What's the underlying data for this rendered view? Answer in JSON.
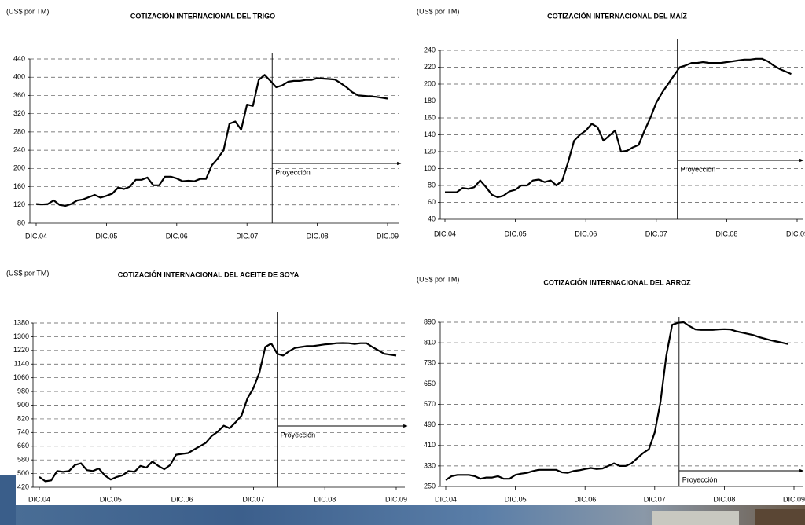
{
  "chart_data": [
    {
      "type": "line",
      "title": "COTIZACIÓN INTERNACIONAL DEL TRIGO",
      "y_label": "(US$ por TM)",
      "annotation": "Proyección",
      "projection_x": 40.3,
      "x": [
        0,
        1,
        2,
        3,
        4,
        5,
        6,
        7,
        8,
        9,
        10,
        11,
        12,
        13,
        14,
        15,
        16,
        17,
        18,
        19,
        20,
        21,
        22,
        23,
        24,
        25,
        26,
        27,
        28,
        29,
        30,
        31,
        32,
        33,
        34,
        35,
        36,
        37,
        38,
        39,
        40,
        41,
        42,
        43,
        44,
        45,
        46,
        47,
        48,
        49,
        50,
        51,
        52,
        53,
        54,
        55,
        56,
        57,
        58,
        59,
        60
      ],
      "series": [
        {
          "color": "#000000",
          "values": [
            122,
            121,
            122,
            130,
            120,
            118,
            122,
            130,
            132,
            137,
            142,
            136,
            140,
            145,
            158,
            155,
            160,
            175,
            175,
            180,
            163,
            163,
            182,
            182,
            178,
            172,
            173,
            172,
            177,
            177,
            207,
            222,
            240,
            298,
            303,
            285,
            340,
            337,
            394,
            405,
            392,
            378,
            382,
            390,
            392,
            392,
            394,
            394,
            398,
            397,
            396,
            395,
            387,
            378,
            367,
            360,
            359,
            358,
            357,
            355,
            353
          ]
        }
      ],
      "xlim": [
        0,
        60
      ],
      "xticks": [
        {
          "value": 0,
          "label": "DIC.04"
        },
        {
          "value": 12,
          "label": "DIC.05"
        },
        {
          "value": 24,
          "label": "DIC.06"
        },
        {
          "value": 36,
          "label": "DIC.07"
        },
        {
          "value": 48,
          "label": "DIC.08"
        },
        {
          "value": 60,
          "label": "DIC.09"
        }
      ],
      "ylim": [
        80,
        440
      ],
      "yticks": [
        80,
        120,
        160,
        200,
        240,
        280,
        320,
        360,
        400,
        440
      ],
      "grid": true
    },
    {
      "type": "line",
      "title": "COTIZACIÓN INTERNACIONAL DEL MAÍZ",
      "y_label": "(US$ por TM)",
      "annotation": "Proyección",
      "projection_x": 39.6,
      "x": [
        0,
        1,
        2,
        3,
        4,
        5,
        6,
        7,
        8,
        9,
        10,
        11,
        12,
        13,
        14,
        15,
        16,
        17,
        18,
        19,
        20,
        21,
        22,
        23,
        24,
        25,
        26,
        27,
        28,
        29,
        30,
        31,
        32,
        33,
        34,
        35,
        36,
        37,
        38,
        39,
        40,
        41,
        42,
        43,
        44,
        45,
        46,
        47,
        48,
        49,
        50,
        51,
        52,
        53,
        54,
        55,
        56,
        57,
        58,
        59
      ],
      "series": [
        {
          "color": "#000000",
          "values": [
            72,
            72,
            72,
            77,
            76,
            78,
            86,
            78,
            69,
            66,
            68,
            73,
            75,
            80,
            80,
            86,
            87,
            84,
            86,
            80,
            86,
            108,
            133,
            140,
            145,
            153,
            149,
            133,
            139,
            145,
            120,
            121,
            125,
            128,
            145,
            160,
            178,
            190,
            200,
            210,
            220,
            222,
            225,
            225,
            226,
            225,
            225,
            225,
            226,
            227,
            228,
            229,
            229,
            230,
            230,
            227,
            222,
            218,
            215,
            212
          ]
        }
      ],
      "xlim": [
        0,
        60
      ],
      "xticks": [
        {
          "value": 0,
          "label": "DIC.04"
        },
        {
          "value": 12,
          "label": "DIC.05"
        },
        {
          "value": 24,
          "label": "DIC.06"
        },
        {
          "value": 36,
          "label": "DIC.07"
        },
        {
          "value": 48,
          "label": "DIC.08"
        },
        {
          "value": 60,
          "label": "DIC.09"
        }
      ],
      "ylim": [
        40,
        240
      ],
      "yticks": [
        40,
        60,
        80,
        100,
        120,
        140,
        160,
        180,
        200,
        220,
        240
      ],
      "grid": true
    },
    {
      "type": "line",
      "title": "COTIZACIÓN INTERNACIONAL DEL ACEITE DE SOYA",
      "y_label": "(US$ por TM)",
      "annotation": "Proyección",
      "projection_x": 40,
      "x": [
        0,
        1,
        2,
        3,
        4,
        5,
        6,
        7,
        8,
        9,
        10,
        11,
        12,
        13,
        14,
        15,
        16,
        17,
        18,
        19,
        20,
        21,
        22,
        23,
        24,
        25,
        26,
        27,
        28,
        29,
        30,
        31,
        32,
        33,
        34,
        35,
        36,
        37,
        38,
        39,
        40,
        41,
        42,
        43,
        44,
        45,
        46,
        47,
        48,
        49,
        50,
        51,
        52,
        53,
        54,
        55,
        56,
        57,
        58,
        59,
        60
      ],
      "series": [
        {
          "color": "#000000",
          "values": [
            480,
            455,
            460,
            515,
            510,
            515,
            550,
            560,
            520,
            515,
            530,
            490,
            465,
            480,
            490,
            515,
            510,
            545,
            535,
            570,
            545,
            525,
            550,
            610,
            615,
            620,
            640,
            660,
            680,
            720,
            745,
            780,
            765,
            800,
            840,
            940,
            1000,
            1090,
            1240,
            1260,
            1200,
            1190,
            1215,
            1235,
            1240,
            1245,
            1245,
            1250,
            1255,
            1258,
            1262,
            1263,
            1262,
            1258,
            1262,
            1262,
            1240,
            1220,
            1200,
            1195,
            1190
          ]
        }
      ],
      "xlim": [
        0,
        60
      ],
      "xticks": [
        {
          "value": 0,
          "label": "DIC.04"
        },
        {
          "value": 12,
          "label": "DIC.05"
        },
        {
          "value": 24,
          "label": "DIC.06"
        },
        {
          "value": 36,
          "label": "DIC.07"
        },
        {
          "value": 48,
          "label": "DIC.08"
        },
        {
          "value": 60,
          "label": "DIC.09"
        }
      ],
      "ylim": [
        420,
        1380
      ],
      "yticks": [
        420,
        500,
        580,
        660,
        740,
        820,
        900,
        980,
        1060,
        1140,
        1220,
        1300,
        1380
      ],
      "grid": true
    },
    {
      "type": "line",
      "title": "COTIZACIÓN INTERNACIONAL DEL ARROZ",
      "y_label": "(US$ por TM)",
      "annotation": "Proyección",
      "projection_x": 40.2,
      "x": [
        0,
        1,
        2,
        3,
        4,
        5,
        6,
        7,
        8,
        9,
        10,
        11,
        12,
        13,
        14,
        15,
        16,
        17,
        18,
        19,
        20,
        21,
        22,
        23,
        24,
        25,
        26,
        27,
        28,
        29,
        30,
        31,
        32,
        33,
        34,
        35,
        36,
        37,
        38,
        39,
        40,
        41,
        42,
        43,
        44,
        45,
        46,
        47,
        48,
        49,
        50,
        51,
        52,
        53,
        54,
        55,
        56,
        57,
        58,
        59
      ],
      "series": [
        {
          "color": "#000000",
          "values": [
            275,
            290,
            295,
            295,
            295,
            290,
            280,
            285,
            285,
            290,
            280,
            280,
            295,
            300,
            303,
            310,
            315,
            315,
            315,
            315,
            305,
            303,
            310,
            313,
            318,
            322,
            318,
            320,
            330,
            340,
            330,
            330,
            340,
            360,
            380,
            395,
            460,
            580,
            760,
            880,
            888,
            890,
            875,
            862,
            860,
            860,
            860,
            862,
            863,
            862,
            855,
            850,
            845,
            840,
            832,
            826,
            820,
            815,
            810,
            805
          ]
        }
      ],
      "xlim": [
        0,
        60
      ],
      "xticks": [
        {
          "value": 0,
          "label": "DIC.04"
        },
        {
          "value": 12,
          "label": "DIC.05"
        },
        {
          "value": 24,
          "label": "DIC.06"
        },
        {
          "value": 36,
          "label": "DIC.07"
        },
        {
          "value": 48,
          "label": "DIC.08"
        },
        {
          "value": 60,
          "label": "DIC.09"
        }
      ],
      "ylim": [
        250,
        890
      ],
      "yticks": [
        250,
        330,
        410,
        490,
        570,
        650,
        730,
        810,
        890
      ],
      "grid": true
    }
  ]
}
